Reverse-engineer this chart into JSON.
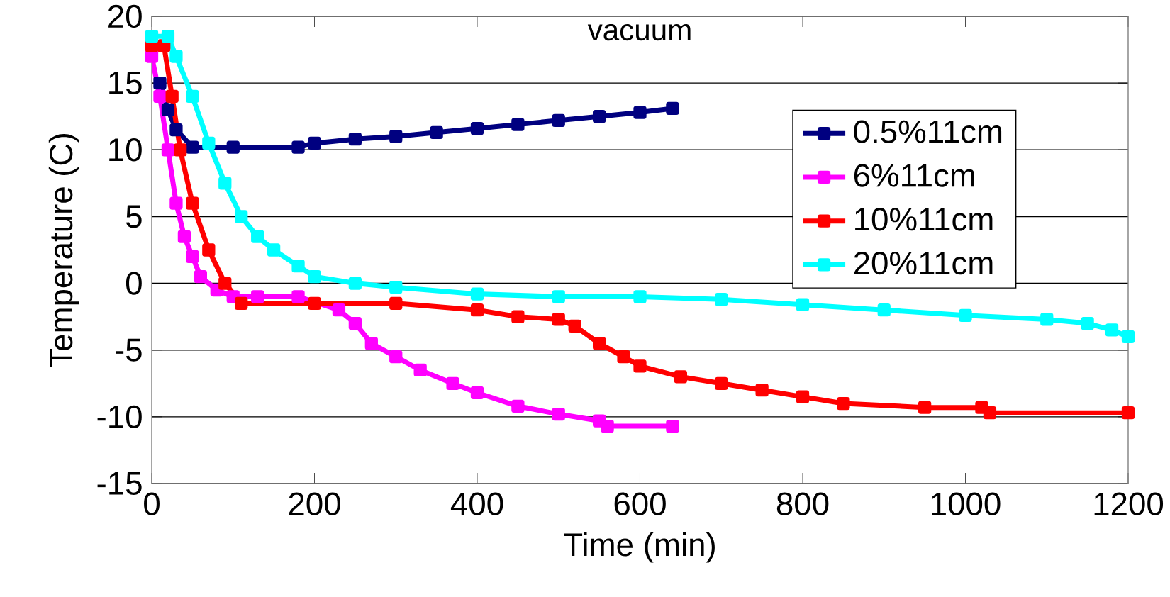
{
  "chart_data": {
    "type": "line",
    "title": "vacuum",
    "xlabel": "Time (min)",
    "ylabel": "Temperature (C)",
    "xlim": [
      0,
      1200
    ],
    "xticks": [
      0,
      200,
      400,
      600,
      800,
      1000,
      1200
    ],
    "ylim": [
      -15,
      20
    ],
    "yticks": [
      -15,
      -10,
      -5,
      0,
      5,
      10,
      15,
      20
    ],
    "grid": "y",
    "legend": "right",
    "marker": "square",
    "line_style": "solid",
    "series": [
      {
        "name": "0.5%11cm",
        "color": "#000080",
        "x": [
          10,
          20,
          30,
          50,
          100,
          180,
          200,
          250,
          300,
          350,
          400,
          450,
          500,
          550,
          600,
          640
        ],
        "values": [
          15,
          13,
          11.5,
          10.2,
          10.2,
          10.2,
          10.5,
          10.8,
          11,
          11.3,
          11.6,
          11.9,
          12.2,
          12.5,
          12.8,
          13.1
        ]
      },
      {
        "name": "6%11cm",
        "color": "#ff00ff",
        "x": [
          0,
          10,
          20,
          30,
          40,
          50,
          60,
          80,
          100,
          130,
          180,
          230,
          250,
          270,
          300,
          330,
          370,
          400,
          450,
          500,
          550,
          560,
          640
        ],
        "values": [
          17,
          14,
          10,
          6,
          3.5,
          2,
          0.5,
          -0.5,
          -1,
          -1,
          -1,
          -2,
          -3,
          -4.5,
          -5.5,
          -6.5,
          -7.5,
          -8.2,
          -9.2,
          -9.8,
          -10.3,
          -10.7,
          -10.7
        ]
      },
      {
        "name": "10%11cm",
        "color": "#ff0000",
        "x": [
          0,
          15,
          25,
          35,
          50,
          70,
          90,
          110,
          200,
          300,
          400,
          450,
          500,
          520,
          550,
          580,
          600,
          650,
          700,
          750,
          800,
          850,
          950,
          1020,
          1030,
          1200
        ],
        "values": [
          17.8,
          17.8,
          14,
          10,
          6,
          2.5,
          0,
          -1.5,
          -1.5,
          -1.5,
          -2,
          -2.5,
          -2.7,
          -3.2,
          -4.5,
          -5.5,
          -6.2,
          -7,
          -7.5,
          -8,
          -8.5,
          -9,
          -9.3,
          -9.3,
          -9.7,
          -9.7
        ]
      },
      {
        "name": "20%11cm",
        "color": "#00ffff",
        "x": [
          0,
          20,
          30,
          50,
          70,
          90,
          110,
          130,
          150,
          180,
          200,
          250,
          300,
          400,
          500,
          600,
          700,
          800,
          900,
          1000,
          1100,
          1150,
          1180,
          1200
        ],
        "values": [
          18.5,
          18.5,
          17,
          14,
          10.5,
          7.5,
          5,
          3.5,
          2.5,
          1.3,
          0.5,
          0,
          -0.3,
          -0.8,
          -1,
          -1,
          -1.2,
          -1.6,
          -2,
          -2.4,
          -2.7,
          -3,
          -3.5,
          -4
        ]
      }
    ]
  }
}
